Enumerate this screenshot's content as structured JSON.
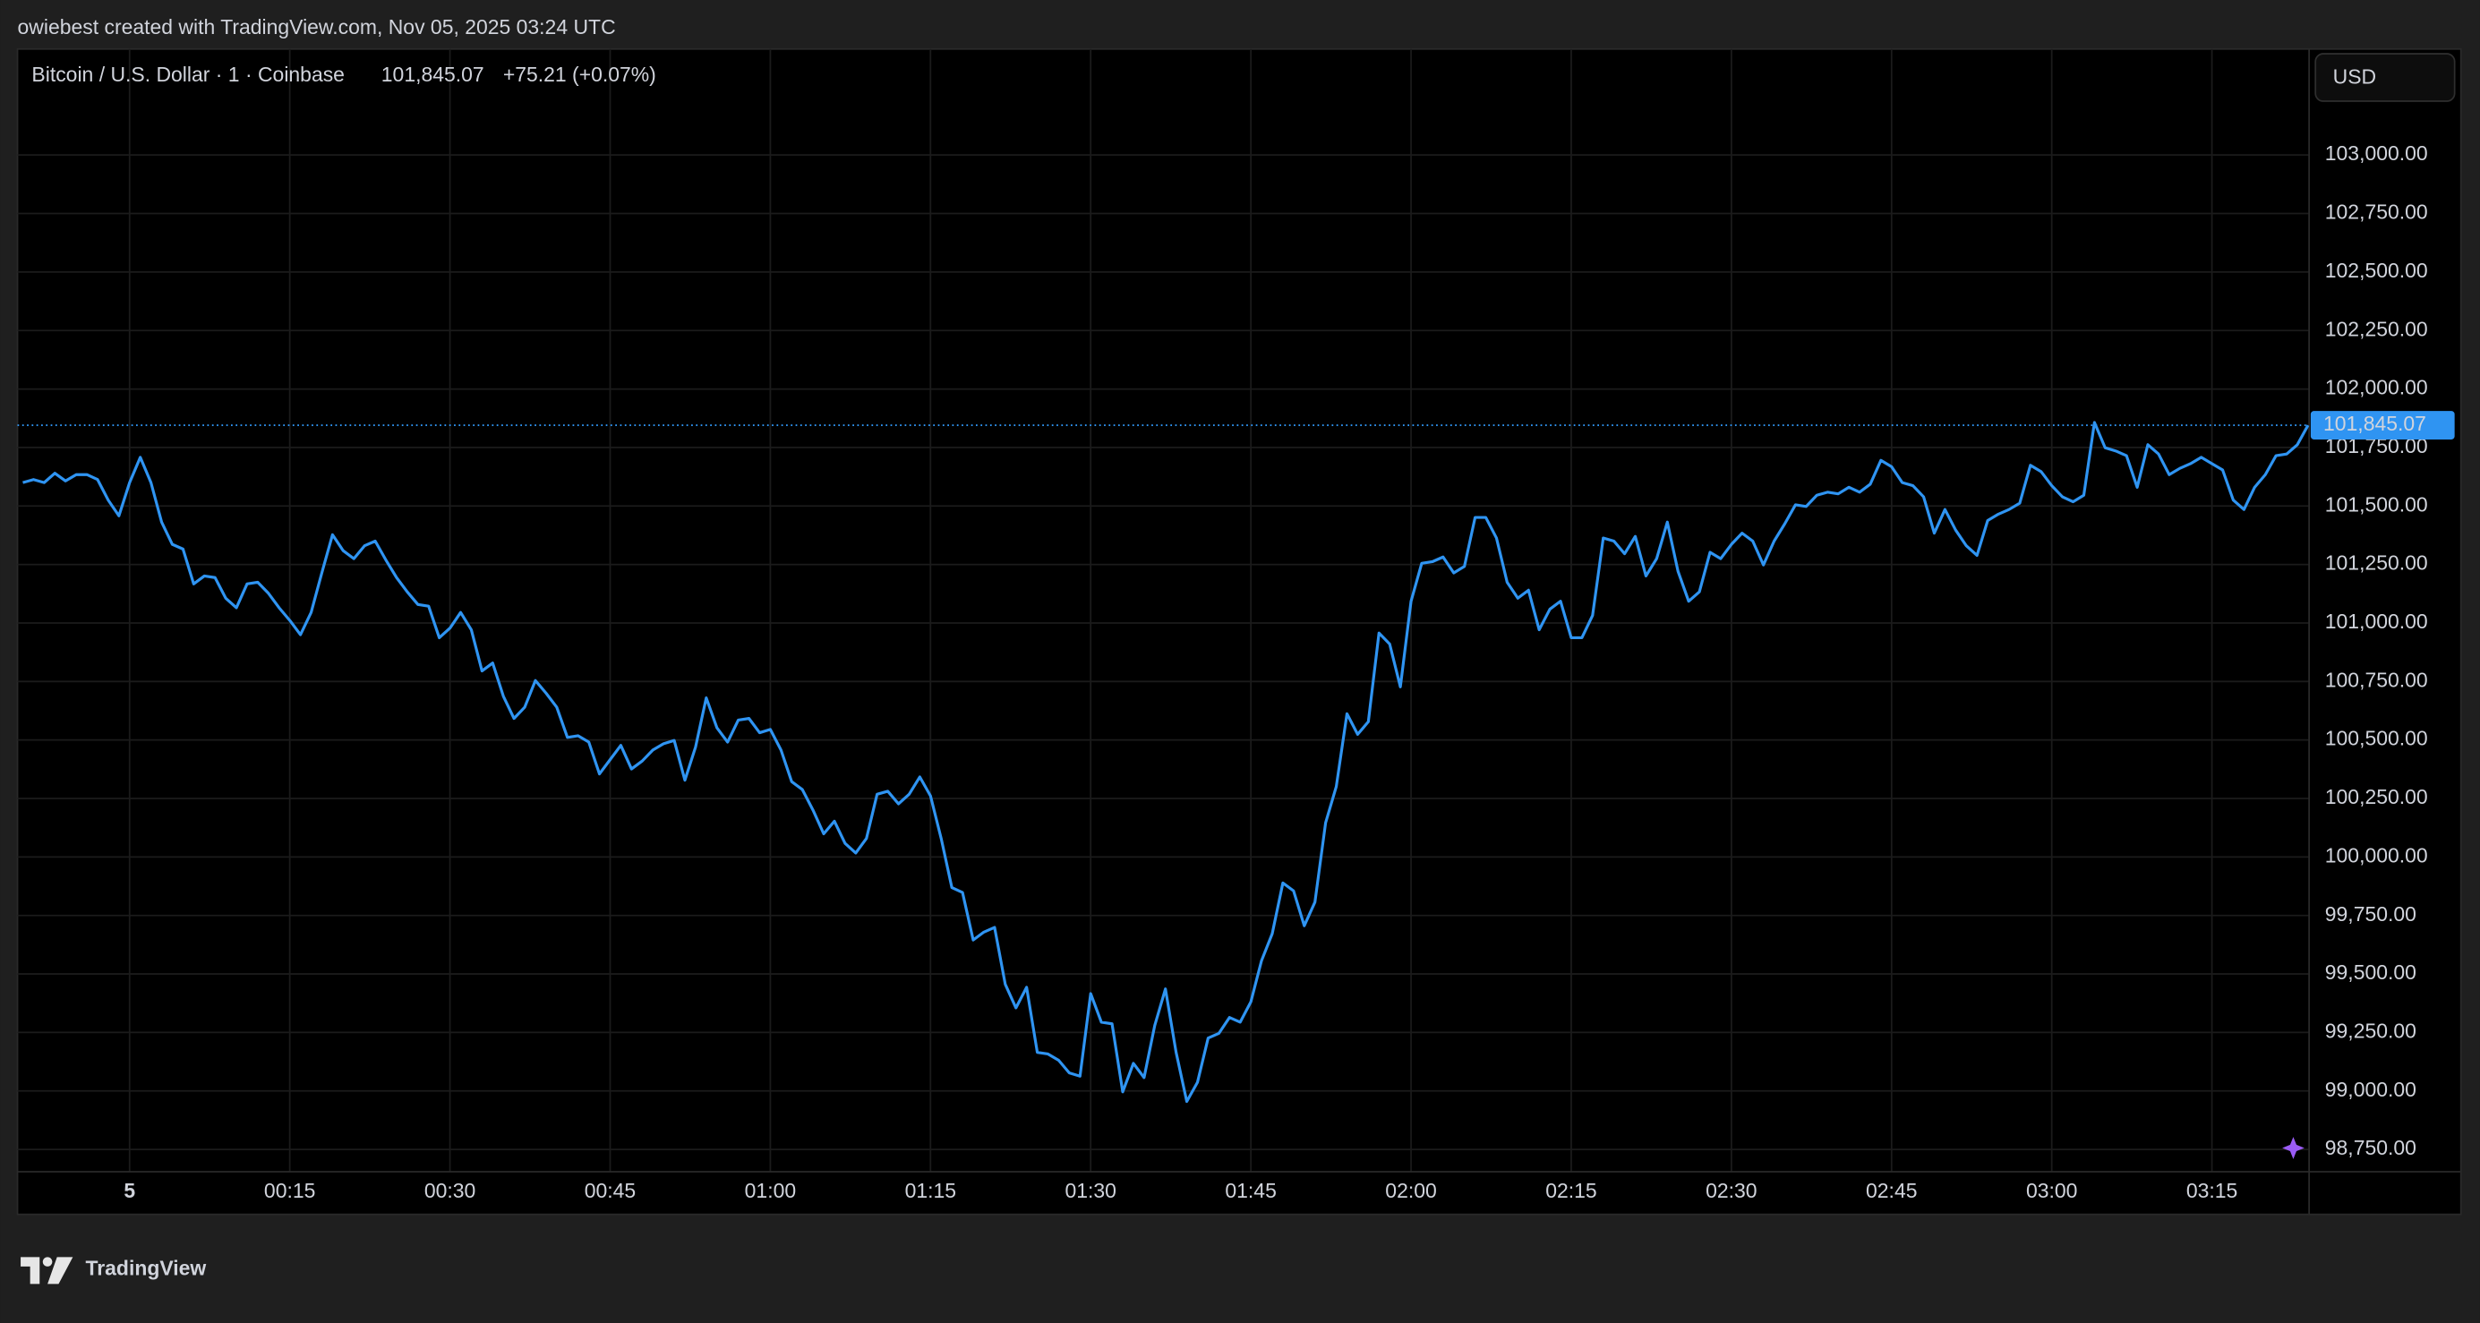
{
  "chart_data": {
    "type": "line",
    "attribution": "owiebest created with TradingView.com, Nov 05, 2025 03:24 UTC",
    "title": "Bitcoin / U.S. Dollar · 1 · Coinbase",
    "change_label": "+75.21 (+0.07%)",
    "currency": "USD",
    "brand": "TradingView",
    "color": "#2f94f2",
    "grid": true,
    "last_price": {
      "value": 101845.07,
      "label": "101,845.07"
    },
    "xlim": [
      -10.5,
      204.1
    ],
    "ylim": [
      98655,
      103453
    ],
    "xticks": [
      {
        "value": 0,
        "label": "5"
      },
      {
        "value": 15,
        "label": "00:15"
      },
      {
        "value": 30,
        "label": "00:30"
      },
      {
        "value": 45,
        "label": "00:45"
      },
      {
        "value": 60,
        "label": "01:00"
      },
      {
        "value": 75,
        "label": "01:15"
      },
      {
        "value": 90,
        "label": "01:30"
      },
      {
        "value": 105,
        "label": "01:45"
      },
      {
        "value": 120,
        "label": "02:00"
      },
      {
        "value": 135,
        "label": "02:15"
      },
      {
        "value": 150,
        "label": "02:30"
      },
      {
        "value": 165,
        "label": "02:45"
      },
      {
        "value": 180,
        "label": "03:00"
      },
      {
        "value": 195,
        "label": "03:15"
      }
    ],
    "yticks": [
      {
        "value": 98750,
        "label": "98,750.00"
      },
      {
        "value": 99000,
        "label": "99,000.00"
      },
      {
        "value": 99250,
        "label": "99,250.00"
      },
      {
        "value": 99500,
        "label": "99,500.00"
      },
      {
        "value": 99750,
        "label": "99,750.00"
      },
      {
        "value": 100000,
        "label": "100,000.00"
      },
      {
        "value": 100250,
        "label": "100,250.00"
      },
      {
        "value": 100500,
        "label": "100,500.00"
      },
      {
        "value": 100750,
        "label": "100,750.00"
      },
      {
        "value": 101000,
        "label": "101,000.00"
      },
      {
        "value": 101250,
        "label": "101,250.00"
      },
      {
        "value": 101500,
        "label": "101,500.00"
      },
      {
        "value": 101750,
        "label": "101,750.00"
      },
      {
        "value": 102000,
        "label": "102,000.00"
      },
      {
        "value": 102250,
        "label": "102,250.00"
      },
      {
        "value": 102500,
        "label": "102,500.00"
      },
      {
        "value": 102750,
        "label": "102,750.00"
      },
      {
        "value": 103000,
        "label": "103,000.00"
      }
    ],
    "x": [
      -10,
      -9,
      -8,
      -7,
      -6,
      -5,
      -4,
      -3,
      -2,
      -1,
      0,
      1,
      2,
      3,
      4,
      5,
      6,
      7,
      8,
      9,
      10,
      11,
      12,
      13,
      14,
      15,
      16,
      17,
      18,
      19,
      20,
      21,
      22,
      23,
      24,
      25,
      26,
      27,
      28,
      29,
      30,
      31,
      32,
      33,
      34,
      35,
      36,
      37,
      38,
      39,
      40,
      41,
      42,
      43,
      44,
      45,
      46,
      47,
      48,
      49,
      50,
      51,
      52,
      53,
      54,
      55,
      56,
      57,
      58,
      59,
      60,
      61,
      62,
      63,
      64,
      65,
      66,
      67,
      68,
      69,
      70,
      71,
      72,
      73,
      74,
      75,
      76,
      77,
      78,
      79,
      80,
      81,
      82,
      83,
      84,
      85,
      86,
      87,
      88,
      89,
      90,
      91,
      92,
      93,
      94,
      95,
      96,
      97,
      98,
      99,
      100,
      101,
      102,
      103,
      104,
      105,
      106,
      107,
      108,
      109,
      110,
      111,
      112,
      113,
      114,
      115,
      116,
      117,
      118,
      119,
      120,
      121,
      122,
      123,
      124,
      125,
      126,
      127,
      128,
      129,
      130,
      131,
      132,
      133,
      134,
      135,
      136,
      137,
      138,
      139,
      140,
      141,
      142,
      143,
      144,
      145,
      146,
      147,
      148,
      149,
      150,
      151,
      152,
      153,
      154,
      155,
      156,
      157,
      158,
      159,
      160,
      161,
      162,
      163,
      164,
      165,
      166,
      167,
      168,
      169,
      170,
      171,
      172,
      173,
      174,
      175,
      176,
      177,
      178,
      179,
      180,
      181,
      182,
      183,
      184,
      185,
      186,
      187,
      188,
      189,
      190,
      191,
      192,
      193,
      194,
      195,
      196,
      197,
      198,
      199,
      200,
      201,
      202,
      203,
      204
    ],
    "values": [
      101600,
      101613,
      101600,
      101640,
      101607,
      101634,
      101634,
      101613,
      101525,
      101458,
      101600,
      101708,
      101600,
      101431,
      101336,
      101316,
      101167,
      101201,
      101194,
      101106,
      101065,
      101167,
      101174,
      101127,
      101065,
      101011,
      100950,
      101045,
      101214,
      101377,
      101309,
      101275,
      101330,
      101350,
      101269,
      101194,
      101133,
      101079,
      101072,
      100937,
      100978,
      101045,
      100971,
      100795,
      100829,
      100687,
      100592,
      100640,
      100754,
      100700,
      100640,
      100511,
      100518,
      100491,
      100355,
      100416,
      100477,
      100376,
      100410,
      100457,
      100484,
      100498,
      100328,
      100470,
      100680,
      100552,
      100491,
      100585,
      100592,
      100531,
      100545,
      100457,
      100322,
      100288,
      100200,
      100099,
      100153,
      100058,
      100017,
      100079,
      100268,
      100281,
      100227,
      100268,
      100342,
      100261,
      100079,
      99869,
      99848,
      99645,
      99679,
      99699,
      99456,
      99355,
      99443,
      99165,
      99158,
      99131,
      99077,
      99063,
      99416,
      99294,
      99287,
      98996,
      99118,
      99057,
      99280,
      99436,
      99165,
      98955,
      99037,
      99226,
      99246,
      99314,
      99294,
      99381,
      99557,
      99672,
      99889,
      99855,
      99706,
      99807,
      100146,
      100301,
      100612,
      100524,
      100578,
      100957,
      100910,
      100727,
      101093,
      101255,
      101262,
      101282,
      101214,
      101242,
      101451,
      101451,
      101363,
      101174,
      101106,
      101140,
      100971,
      101059,
      101093,
      100937,
      100937,
      101032,
      101363,
      101350,
      101296,
      101370,
      101201,
      101275,
      101431,
      101221,
      101093,
      101133,
      101302,
      101275,
      101336,
      101384,
      101350,
      101248,
      101350,
      101424,
      101505,
      101498,
      101546,
      101559,
      101552,
      101580,
      101559,
      101593,
      101695,
      101668,
      101600,
      101587,
      101539,
      101384,
      101485,
      101397,
      101330,
      101289,
      101438,
      101465,
      101485,
      101512,
      101674,
      101647,
      101587,
      101539,
      101518,
      101546,
      101857,
      101749,
      101735,
      101715,
      101580,
      101762,
      101722,
      101634,
      101661,
      101681,
      101708,
      101681,
      101654,
      101525,
      101485,
      101580,
      101634,
      101715,
      101722,
      101762,
      101845.07
    ]
  }
}
